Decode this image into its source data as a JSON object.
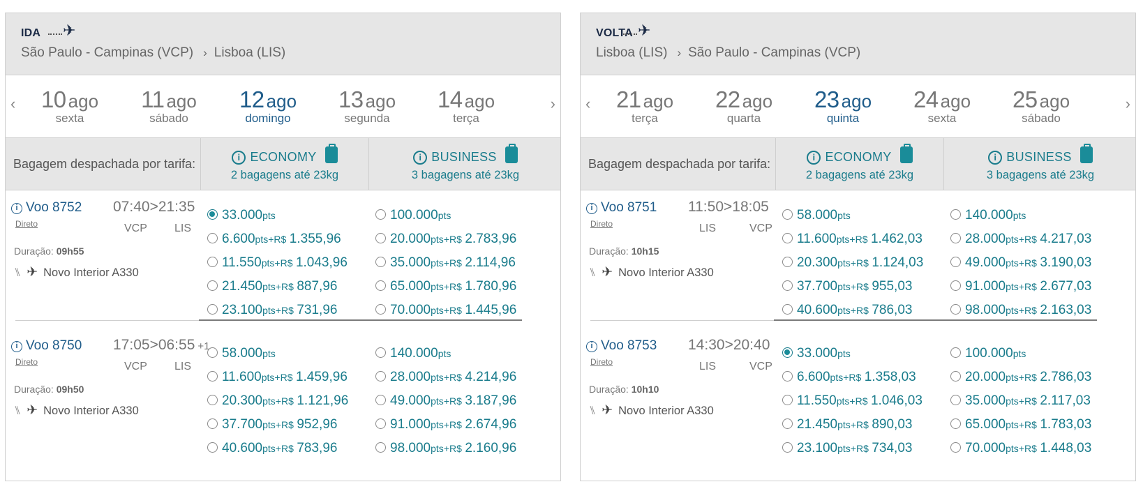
{
  "panels": [
    {
      "label": "IDA",
      "route": {
        "from": "São Paulo - Campinas (VCP)",
        "to": "Lisboa (LIS)"
      },
      "dates": [
        {
          "num": "10",
          "month": "ago",
          "day": "sexta",
          "selected": false
        },
        {
          "num": "11",
          "month": "ago",
          "day": "sábado",
          "selected": false
        },
        {
          "num": "12",
          "month": "ago",
          "day": "domingo",
          "selected": true
        },
        {
          "num": "13",
          "month": "ago",
          "day": "segunda",
          "selected": false
        },
        {
          "num": "14",
          "month": "ago",
          "day": "terça",
          "selected": false
        }
      ],
      "bag_label": "Bagagem despachada por tarifa:",
      "economy": {
        "title": "ECONOMY",
        "bags": "2 bagagens até 23kg"
      },
      "business": {
        "title": "BUSINESS",
        "bags": "3 bagagens até 23kg"
      },
      "flights": [
        {
          "voo": "Voo 8752",
          "direto": "Direto",
          "dep": "07:40",
          "arr": "21:35",
          "plus": "",
          "from": "VCP",
          "to": "LIS",
          "dur_label": "Duração:",
          "dur": "09h55",
          "aircraft": "Novo Interior A330",
          "economy": [
            {
              "pts": "33.000",
              "brl": "",
              "selected": true
            },
            {
              "pts": "6.600",
              "brl": "1.355,96",
              "selected": false
            },
            {
              "pts": "11.550",
              "brl": "1.043,96",
              "selected": false
            },
            {
              "pts": "21.450",
              "brl": "887,96",
              "selected": false
            },
            {
              "pts": "23.100",
              "brl": "731,96",
              "selected": false
            }
          ],
          "business": [
            {
              "pts": "100.000",
              "brl": "",
              "selected": false
            },
            {
              "pts": "20.000",
              "brl": "2.783,96",
              "selected": false
            },
            {
              "pts": "35.000",
              "brl": "2.114,96",
              "selected": false
            },
            {
              "pts": "65.000",
              "brl": "1.780,96",
              "selected": false
            },
            {
              "pts": "70.000",
              "brl": "1.445,96",
              "selected": false
            }
          ]
        },
        {
          "voo": "Voo 8750",
          "direto": "Direto",
          "dep": "17:05",
          "arr": "06:55",
          "plus": "+1",
          "from": "VCP",
          "to": "LIS",
          "dur_label": "Duração:",
          "dur": "09h50",
          "aircraft": "Novo Interior A330",
          "economy": [
            {
              "pts": "58.000",
              "brl": "",
              "selected": false
            },
            {
              "pts": "11.600",
              "brl": "1.459,96",
              "selected": false
            },
            {
              "pts": "20.300",
              "brl": "1.121,96",
              "selected": false
            },
            {
              "pts": "37.700",
              "brl": "952,96",
              "selected": false
            },
            {
              "pts": "40.600",
              "brl": "783,96",
              "selected": false
            }
          ],
          "business": [
            {
              "pts": "140.000",
              "brl": "",
              "selected": false
            },
            {
              "pts": "28.000",
              "brl": "4.214,96",
              "selected": false
            },
            {
              "pts": "49.000",
              "brl": "3.187,96",
              "selected": false
            },
            {
              "pts": "91.000",
              "brl": "2.674,96",
              "selected": false
            },
            {
              "pts": "98.000",
              "brl": "2.160,96",
              "selected": false
            }
          ]
        }
      ]
    },
    {
      "label": "VOLTA",
      "route": {
        "from": "Lisboa (LIS)",
        "to": "São Paulo - Campinas (VCP)"
      },
      "dates": [
        {
          "num": "21",
          "month": "ago",
          "day": "terça",
          "selected": false
        },
        {
          "num": "22",
          "month": "ago",
          "day": "quarta",
          "selected": false
        },
        {
          "num": "23",
          "month": "ago",
          "day": "quinta",
          "selected": true
        },
        {
          "num": "24",
          "month": "ago",
          "day": "sexta",
          "selected": false
        },
        {
          "num": "25",
          "month": "ago",
          "day": "sábado",
          "selected": false
        }
      ],
      "bag_label": "Bagagem despachada por tarifa:",
      "economy": {
        "title": "ECONOMY",
        "bags": "2 bagagens até 23kg"
      },
      "business": {
        "title": "BUSINESS",
        "bags": "3 bagagens até 23kg"
      },
      "flights": [
        {
          "voo": "Voo 8751",
          "direto": "Direto",
          "dep": "11:50",
          "arr": "18:05",
          "plus": "",
          "from": "LIS",
          "to": "VCP",
          "dur_label": "Duração:",
          "dur": "10h15",
          "aircraft": "Novo Interior A330",
          "economy": [
            {
              "pts": "58.000",
              "brl": "",
              "selected": false
            },
            {
              "pts": "11.600",
              "brl": "1.462,03",
              "selected": false
            },
            {
              "pts": "20.300",
              "brl": "1.124,03",
              "selected": false
            },
            {
              "pts": "37.700",
              "brl": "955,03",
              "selected": false
            },
            {
              "pts": "40.600",
              "brl": "786,03",
              "selected": false
            }
          ],
          "business": [
            {
              "pts": "140.000",
              "brl": "",
              "selected": false
            },
            {
              "pts": "28.000",
              "brl": "4.217,03",
              "selected": false
            },
            {
              "pts": "49.000",
              "brl": "3.190,03",
              "selected": false
            },
            {
              "pts": "91.000",
              "brl": "2.677,03",
              "selected": false
            },
            {
              "pts": "98.000",
              "brl": "2.163,03",
              "selected": false
            }
          ]
        },
        {
          "voo": "Voo 8753",
          "direto": "Direto",
          "dep": "14:30",
          "arr": "20:40",
          "plus": "",
          "from": "LIS",
          "to": "VCP",
          "dur_label": "Duração:",
          "dur": "10h10",
          "aircraft": "Novo Interior A330",
          "economy": [
            {
              "pts": "33.000",
              "brl": "",
              "selected": true
            },
            {
              "pts": "6.600",
              "brl": "1.358,03",
              "selected": false
            },
            {
              "pts": "11.550",
              "brl": "1.046,03",
              "selected": false
            },
            {
              "pts": "21.450",
              "brl": "890,03",
              "selected": false
            },
            {
              "pts": "23.100",
              "brl": "734,03",
              "selected": false
            }
          ],
          "business": [
            {
              "pts": "100.000",
              "brl": "",
              "selected": false
            },
            {
              "pts": "20.000",
              "brl": "2.786,03",
              "selected": false
            },
            {
              "pts": "35.000",
              "brl": "2.117,03",
              "selected": false
            },
            {
              "pts": "65.000",
              "brl": "1.783,03",
              "selected": false
            },
            {
              "pts": "70.000",
              "brl": "1.448,03",
              "selected": false
            }
          ]
        }
      ]
    }
  ],
  "units": {
    "pts": "pts",
    "plus": "+",
    "currency": "R$"
  },
  "icons": {
    "nav_prev": "chevron-left-icon",
    "nav_next": "chevron-right-icon",
    "plane": "plane-icon",
    "info": "info-icon",
    "baggage": "baggage-icon",
    "seat": "seat-icon"
  },
  "colors": {
    "accent_teal": "#1a7c8c",
    "selected_date": "#1f5c8a",
    "header_bg": "#e6e6e6",
    "title_dark": "#1b2a45"
  }
}
